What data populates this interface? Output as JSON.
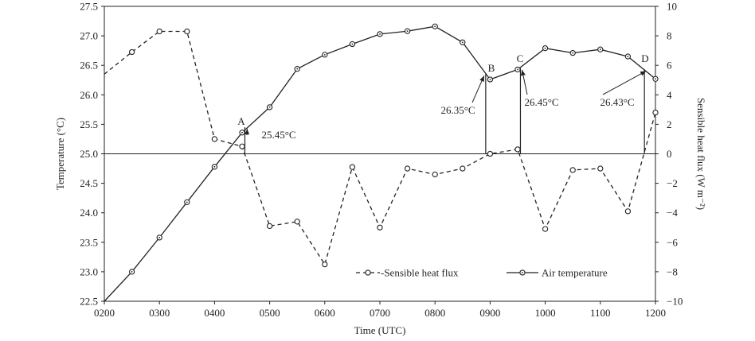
{
  "chart_data": {
    "type": "line",
    "xlabel": "Time (UTC)",
    "ylabel_left": "Temperature (°C)",
    "ylabel_right": "Sensible heat flux (W m⁻²)",
    "xlim": [
      200,
      1200
    ],
    "ylim_left": [
      22.5,
      27.5
    ],
    "ylim_right": [
      -10,
      10
    ],
    "x_ticks": [
      "0200",
      "0300",
      "0400",
      "0500",
      "0600",
      "0700",
      "0800",
      "0900",
      "1000",
      "1100",
      "1200"
    ],
    "y_left_ticks": [
      "22.5",
      "23.0",
      "23.5",
      "24.0",
      "24.5",
      "25.0",
      "25.5",
      "26.0",
      "26.5",
      "27.0",
      "27.5"
    ],
    "y_right_ticks": [
      "−10",
      "−8",
      "−6",
      "−4",
      "−2",
      "0",
      "2",
      "4",
      "6",
      "8",
      "10"
    ],
    "grid": false,
    "zero_line": true,
    "legend_position": "bottom-center",
    "series": [
      {
        "name": "Sensible heat flux",
        "axis": "right",
        "style": "dashed",
        "marker": "open-circle",
        "color": "#222222",
        "x": [
          200,
          250,
          300,
          350,
          400,
          450,
          500,
          550,
          600,
          650,
          700,
          750,
          800,
          850,
          900,
          950,
          1000,
          1050,
          1100,
          1150,
          1200
        ],
        "values": [
          5.4,
          6.9,
          8.3,
          8.3,
          1.0,
          0.5,
          -4.9,
          -4.6,
          -7.5,
          -0.9,
          -5.0,
          -1.0,
          -1.4,
          -1.0,
          0.0,
          0.3,
          -5.1,
          -1.1,
          -1.0,
          -3.9,
          2.8
        ],
        "marker_x": [
          250,
          300,
          350,
          400,
          450,
          500,
          550,
          600,
          650,
          700,
          750,
          800,
          850,
          900,
          950,
          1000,
          1050,
          1100,
          1150,
          1200
        ]
      },
      {
        "name": "Air temperature",
        "axis": "left",
        "style": "solid",
        "marker": "open-circle-dot",
        "color": "#222222",
        "x": [
          200,
          250,
          300,
          350,
          400,
          450,
          500,
          550,
          600,
          650,
          700,
          750,
          800,
          850,
          900,
          950,
          1000,
          1050,
          1100,
          1150,
          1200
        ],
        "values": [
          22.45,
          23.0,
          23.58,
          24.18,
          24.78,
          25.36,
          25.79,
          26.44,
          26.68,
          26.86,
          27.03,
          27.08,
          27.16,
          26.89,
          26.26,
          26.43,
          26.79,
          26.71,
          26.77,
          26.65,
          26.27
        ],
        "marker_x": [
          250,
          300,
          350,
          400,
          450,
          500,
          550,
          600,
          650,
          700,
          750,
          800,
          850,
          900,
          950,
          1000,
          1050,
          1100,
          1150,
          1200
        ]
      }
    ],
    "markers_vertical": [
      {
        "letter": "A",
        "x": 455,
        "temp": 25.45,
        "label": "25.45°C"
      },
      {
        "letter": "B",
        "x": 892,
        "temp": 26.35,
        "label": "26.35°C"
      },
      {
        "letter": "C",
        "x": 955,
        "temp": 26.45,
        "label": "26.45°C"
      },
      {
        "letter": "D",
        "x": 1180,
        "temp": 26.43,
        "label": "26.43°C"
      }
    ]
  }
}
